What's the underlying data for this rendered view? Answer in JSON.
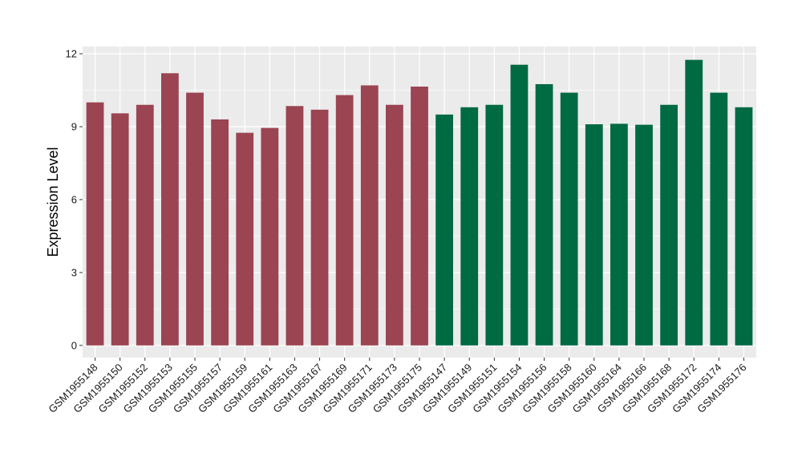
{
  "chart_data": {
    "type": "bar",
    "title": "",
    "xlabel": "",
    "ylabel": "Expression Level",
    "ylim": [
      -0.5,
      12.3
    ],
    "yticks": [
      0,
      3,
      6,
      9,
      12
    ],
    "grid": true,
    "legend": "none",
    "colors": {
      "group1": "#9B4452",
      "group2": "#006A43",
      "panel": "#EBEBEB",
      "gridline": "#FFFFFF"
    },
    "categories": [
      "GSM1955148",
      "GSM1955150",
      "GSM1955152",
      "GSM1955153",
      "GSM1955155",
      "GSM1955157",
      "GSM1955159",
      "GSM1955161",
      "GSM1955163",
      "GSM1955167",
      "GSM1955169",
      "GSM1955171",
      "GSM1955173",
      "GSM1955175",
      "GSM1955147",
      "GSM1955149",
      "GSM1955151",
      "GSM1955154",
      "GSM1955156",
      "GSM1955158",
      "GSM1955160",
      "GSM1955164",
      "GSM1955166",
      "GSM1955168",
      "GSM1955172",
      "GSM1955174",
      "GSM1955176"
    ],
    "values": [
      10.0,
      9.55,
      9.9,
      11.2,
      10.4,
      9.3,
      8.75,
      8.95,
      9.85,
      9.7,
      10.3,
      10.7,
      9.9,
      10.65,
      9.5,
      9.8,
      9.9,
      11.55,
      10.75,
      10.4,
      9.1,
      9.12,
      9.08,
      9.9,
      11.75,
      10.4,
      9.8
    ],
    "groups": [
      "group1",
      "group1",
      "group1",
      "group1",
      "group1",
      "group1",
      "group1",
      "group1",
      "group1",
      "group1",
      "group1",
      "group1",
      "group1",
      "group1",
      "group2",
      "group2",
      "group2",
      "group2",
      "group2",
      "group2",
      "group2",
      "group2",
      "group2",
      "group2",
      "group2",
      "group2",
      "group2"
    ]
  }
}
